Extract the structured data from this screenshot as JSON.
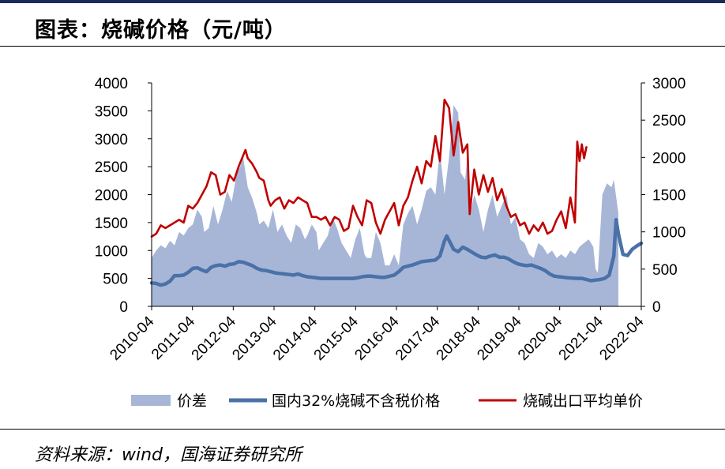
{
  "title": "图表：烧碱价格（元/吨）",
  "source": "资料来源：wind，国海证券研究所",
  "chart_data": {
    "type": "area+line",
    "x_ticks": [
      "2010-04",
      "2011-04",
      "2012-04",
      "2013-04",
      "2014-04",
      "2015-04",
      "2016-04",
      "2017-04",
      "2018-04",
      "2019-04",
      "2020-04",
      "2021-04",
      "2022-04"
    ],
    "y_left": {
      "lim": [
        0,
        4000
      ],
      "ticks": [
        "0",
        "500",
        "1000",
        "1500",
        "2000",
        "2500",
        "3000",
        "3500",
        "4000"
      ]
    },
    "y_right": {
      "lim": [
        0,
        3000
      ],
      "ticks": [
        "0",
        "500",
        "1000",
        "1500",
        "2000",
        "2500",
        "3000"
      ]
    },
    "grid": false,
    "legend_position": "bottom",
    "series": [
      {
        "name": "价差",
        "axis": "right",
        "style": "area",
        "color": "#a7b6d7",
        "points": [
          [
            0,
            650
          ],
          [
            2,
            750
          ],
          [
            4,
            820
          ],
          [
            6,
            780
          ],
          [
            8,
            880
          ],
          [
            10,
            820
          ],
          [
            12,
            1000
          ],
          [
            14,
            950
          ],
          [
            16,
            1050
          ],
          [
            18,
            1100
          ],
          [
            20,
            1300
          ],
          [
            22,
            1200
          ],
          [
            23,
            1000
          ],
          [
            25,
            1050
          ],
          [
            27,
            1350
          ],
          [
            29,
            1100
          ],
          [
            31,
            1300
          ],
          [
            33,
            1550
          ],
          [
            35,
            1400
          ],
          [
            37,
            1750
          ],
          [
            39,
            1900
          ],
          [
            40,
            2000
          ],
          [
            42,
            1600
          ],
          [
            44,
            1450
          ],
          [
            46,
            1250
          ],
          [
            47,
            1100
          ],
          [
            49,
            1150
          ],
          [
            51,
            1050
          ],
          [
            53,
            1300
          ],
          [
            55,
            1000
          ],
          [
            57,
            1100
          ],
          [
            59,
            950
          ],
          [
            61,
            850
          ],
          [
            63,
            1100
          ],
          [
            65,
            1050
          ],
          [
            67,
            900
          ],
          [
            68,
            950
          ],
          [
            70,
            1100
          ],
          [
            72,
            1000
          ],
          [
            73,
            750
          ],
          [
            75,
            850
          ],
          [
            77,
            950
          ],
          [
            79,
            1200
          ],
          [
            81,
            1050
          ],
          [
            83,
            850
          ],
          [
            85,
            750
          ],
          [
            87,
            650
          ],
          [
            89,
            900
          ],
          [
            91,
            1050
          ],
          [
            93,
            700
          ],
          [
            94,
            650
          ],
          [
            96,
            650
          ],
          [
            98,
            1000
          ],
          [
            100,
            850
          ],
          [
            102,
            550
          ],
          [
            104,
            550
          ],
          [
            106,
            700
          ],
          [
            108,
            550
          ],
          [
            110,
            1100
          ],
          [
            112,
            1250
          ],
          [
            114,
            1350
          ],
          [
            116,
            1100
          ],
          [
            118,
            1300
          ],
          [
            120,
            1550
          ],
          [
            122,
            1600
          ],
          [
            124,
            1500
          ],
          [
            126,
            2100
          ],
          [
            128,
            1500
          ],
          [
            130,
            2000
          ],
          [
            132,
            2700
          ],
          [
            134,
            2600
          ],
          [
            135,
            1800
          ],
          [
            137,
            1700
          ],
          [
            138,
            2000
          ],
          [
            139,
            1200
          ],
          [
            141,
            1500
          ],
          [
            143,
            1300
          ],
          [
            145,
            1000
          ],
          [
            147,
            1300
          ],
          [
            149,
            1500
          ],
          [
            151,
            1200
          ],
          [
            153,
            1350
          ],
          [
            155,
            1500
          ],
          [
            157,
            1100
          ],
          [
            159,
            1200
          ],
          [
            161,
            900
          ],
          [
            163,
            850
          ],
          [
            165,
            700
          ],
          [
            167,
            650
          ],
          [
            169,
            850
          ],
          [
            171,
            800
          ],
          [
            173,
            700
          ],
          [
            175,
            750
          ],
          [
            177,
            650
          ],
          [
            179,
            700
          ],
          [
            181,
            650
          ],
          [
            183,
            750
          ],
          [
            185,
            700
          ],
          [
            187,
            800
          ],
          [
            189,
            850
          ],
          [
            191,
            900
          ],
          [
            193,
            800
          ],
          [
            194,
            500
          ],
          [
            195,
            450
          ],
          [
            197,
            1500
          ],
          [
            199,
            1650
          ],
          [
            201,
            1600
          ],
          [
            202,
            1700
          ],
          [
            204,
            1250
          ]
        ]
      },
      {
        "name": "国内32%烧碱不含税价格",
        "axis": "left",
        "style": "line",
        "color": "#4a71a8",
        "points": [
          [
            0,
            420
          ],
          [
            2,
            410
          ],
          [
            4,
            380
          ],
          [
            6,
            400
          ],
          [
            8,
            450
          ],
          [
            10,
            550
          ],
          [
            12,
            550
          ],
          [
            14,
            560
          ],
          [
            16,
            610
          ],
          [
            18,
            680
          ],
          [
            20,
            690
          ],
          [
            22,
            650
          ],
          [
            24,
            620
          ],
          [
            26,
            700
          ],
          [
            28,
            730
          ],
          [
            30,
            740
          ],
          [
            32,
            720
          ],
          [
            34,
            750
          ],
          [
            36,
            760
          ],
          [
            38,
            800
          ],
          [
            40,
            790
          ],
          [
            42,
            760
          ],
          [
            44,
            730
          ],
          [
            46,
            680
          ],
          [
            48,
            650
          ],
          [
            50,
            640
          ],
          [
            52,
            620
          ],
          [
            54,
            600
          ],
          [
            56,
            590
          ],
          [
            58,
            580
          ],
          [
            60,
            570
          ],
          [
            62,
            560
          ],
          [
            64,
            580
          ],
          [
            66,
            550
          ],
          [
            68,
            530
          ],
          [
            70,
            520
          ],
          [
            72,
            510
          ],
          [
            74,
            500
          ],
          [
            76,
            500
          ],
          [
            78,
            500
          ],
          [
            80,
            500
          ],
          [
            82,
            500
          ],
          [
            84,
            500
          ],
          [
            86,
            500
          ],
          [
            88,
            500
          ],
          [
            90,
            510
          ],
          [
            92,
            530
          ],
          [
            94,
            540
          ],
          [
            96,
            540
          ],
          [
            98,
            530
          ],
          [
            100,
            520
          ],
          [
            102,
            520
          ],
          [
            104,
            540
          ],
          [
            106,
            560
          ],
          [
            108,
            620
          ],
          [
            110,
            700
          ],
          [
            112,
            720
          ],
          [
            114,
            740
          ],
          [
            116,
            770
          ],
          [
            118,
            800
          ],
          [
            120,
            810
          ],
          [
            122,
            820
          ],
          [
            124,
            830
          ],
          [
            126,
            900
          ],
          [
            128,
            1170
          ],
          [
            129,
            1260
          ],
          [
            130,
            1180
          ],
          [
            132,
            1020
          ],
          [
            134,
            980
          ],
          [
            136,
            1060
          ],
          [
            138,
            1020
          ],
          [
            140,
            970
          ],
          [
            142,
            920
          ],
          [
            144,
            880
          ],
          [
            146,
            870
          ],
          [
            148,
            900
          ],
          [
            150,
            920
          ],
          [
            152,
            880
          ],
          [
            154,
            880
          ],
          [
            156,
            850
          ],
          [
            158,
            800
          ],
          [
            160,
            760
          ],
          [
            162,
            740
          ],
          [
            164,
            730
          ],
          [
            166,
            740
          ],
          [
            168,
            710
          ],
          [
            170,
            680
          ],
          [
            172,
            640
          ],
          [
            174,
            580
          ],
          [
            176,
            540
          ],
          [
            178,
            530
          ],
          [
            180,
            520
          ],
          [
            182,
            510
          ],
          [
            184,
            505
          ],
          [
            186,
            500
          ],
          [
            188,
            500
          ],
          [
            190,
            480
          ],
          [
            192,
            460
          ],
          [
            194,
            470
          ],
          [
            196,
            480
          ],
          [
            198,
            500
          ],
          [
            200,
            560
          ],
          [
            202,
            900
          ],
          [
            203,
            1550
          ],
          [
            204,
            1300
          ],
          [
            206,
            930
          ],
          [
            208,
            910
          ],
          [
            210,
            1020
          ],
          [
            212,
            1080
          ],
          [
            214,
            1130
          ]
        ]
      },
      {
        "name": "烧碱出口平均单价",
        "axis": "left",
        "style": "line",
        "color": "#c00000",
        "points": [
          [
            0,
            1250
          ],
          [
            2,
            1300
          ],
          [
            4,
            1450
          ],
          [
            6,
            1400
          ],
          [
            8,
            1450
          ],
          [
            10,
            1500
          ],
          [
            12,
            1550
          ],
          [
            14,
            1500
          ],
          [
            16,
            1800
          ],
          [
            18,
            1750
          ],
          [
            20,
            1850
          ],
          [
            22,
            2000
          ],
          [
            24,
            2150
          ],
          [
            26,
            2400
          ],
          [
            28,
            2350
          ],
          [
            30,
            2000
          ],
          [
            32,
            2050
          ],
          [
            34,
            2350
          ],
          [
            36,
            2250
          ],
          [
            38,
            2500
          ],
          [
            40,
            2700
          ],
          [
            41,
            2800
          ],
          [
            42,
            2650
          ],
          [
            44,
            2550
          ],
          [
            46,
            2400
          ],
          [
            47,
            2300
          ],
          [
            49,
            2250
          ],
          [
            51,
            1900
          ],
          [
            52,
            1800
          ],
          [
            54,
            1900
          ],
          [
            56,
            1950
          ],
          [
            58,
            1750
          ],
          [
            60,
            1900
          ],
          [
            62,
            1850
          ],
          [
            64,
            1950
          ],
          [
            66,
            1900
          ],
          [
            68,
            1850
          ],
          [
            70,
            1600
          ],
          [
            72,
            1600
          ],
          [
            74,
            1550
          ],
          [
            76,
            1600
          ],
          [
            78,
            1450
          ],
          [
            80,
            1600
          ],
          [
            82,
            1550
          ],
          [
            84,
            1350
          ],
          [
            86,
            1400
          ],
          [
            88,
            1800
          ],
          [
            90,
            1600
          ],
          [
            92,
            1450
          ],
          [
            94,
            1900
          ],
          [
            96,
            1850
          ],
          [
            98,
            1500
          ],
          [
            100,
            1300
          ],
          [
            102,
            1550
          ],
          [
            104,
            1700
          ],
          [
            106,
            1850
          ],
          [
            108,
            1450
          ],
          [
            110,
            1800
          ],
          [
            112,
            1950
          ],
          [
            114,
            2250
          ],
          [
            116,
            2500
          ],
          [
            118,
            2200
          ],
          [
            120,
            2600
          ],
          [
            122,
            2500
          ],
          [
            124,
            3050
          ],
          [
            126,
            2600
          ],
          [
            128,
            3700
          ],
          [
            130,
            3550
          ],
          [
            132,
            2700
          ],
          [
            134,
            3300
          ],
          [
            136,
            2750
          ],
          [
            138,
            2900
          ],
          [
            139,
            1650
          ],
          [
            141,
            2450
          ],
          [
            143,
            2000
          ],
          [
            145,
            2350
          ],
          [
            147,
            2050
          ],
          [
            149,
            2300
          ],
          [
            151,
            1900
          ],
          [
            153,
            2100
          ],
          [
            155,
            1800
          ],
          [
            157,
            1600
          ],
          [
            159,
            1650
          ],
          [
            161,
            1450
          ],
          [
            163,
            1500
          ],
          [
            165,
            1300
          ],
          [
            167,
            1450
          ],
          [
            169,
            1350
          ],
          [
            171,
            1500
          ],
          [
            173,
            1300
          ],
          [
            175,
            1350
          ],
          [
            177,
            1550
          ],
          [
            179,
            1700
          ],
          [
            181,
            1400
          ],
          [
            183,
            1950
          ],
          [
            185,
            1500
          ],
          [
            186,
            2950
          ],
          [
            187,
            2600
          ],
          [
            188,
            2900
          ],
          [
            189,
            2650
          ],
          [
            190,
            2850
          ]
        ]
      }
    ]
  }
}
